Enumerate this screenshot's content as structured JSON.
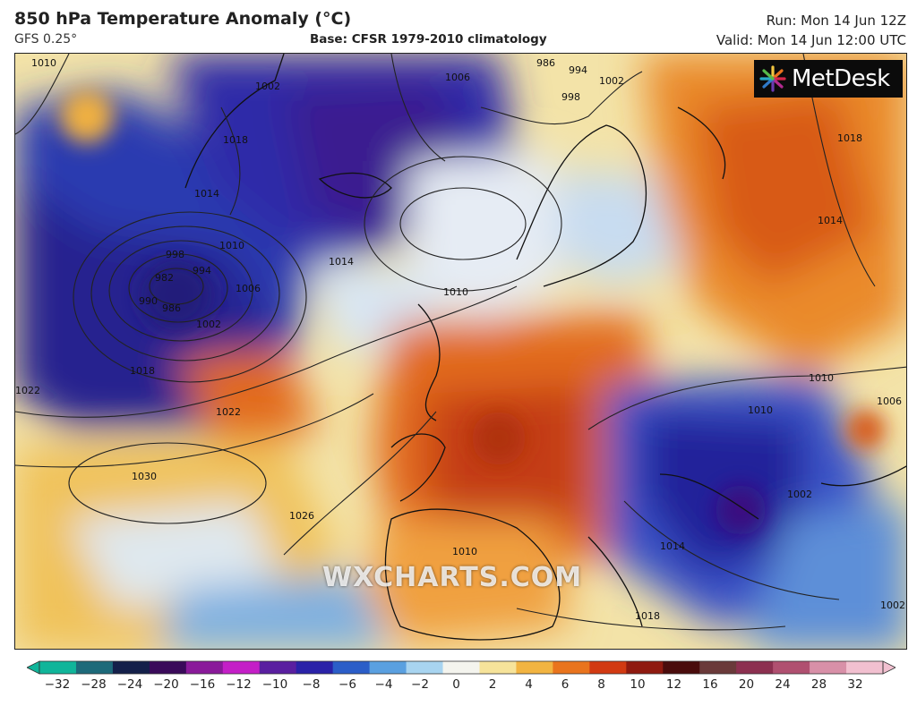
{
  "header": {
    "title": "850 hPa Temperature Anomaly (°C)",
    "model": "GFS 0.25°",
    "base": "Base: CFSR 1979-2010 climatology",
    "run": "Run: Mon 14 Jun 12Z",
    "valid": "Valid: Mon 14 Jun 12:00 UTC"
  },
  "logo": {
    "text": "MetDesk",
    "icon": "metdesk-burst-icon"
  },
  "watermark": "WXCHARTS.COM",
  "colorbar": {
    "ticks": [
      "−32",
      "−28",
      "−24",
      "−20",
      "−16",
      "−12",
      "−10",
      "−8",
      "−6",
      "−4",
      "−2",
      "0",
      "2",
      "4",
      "6",
      "8",
      "10",
      "12",
      "16",
      "20",
      "24",
      "28",
      "32"
    ],
    "colors": [
      "#10b59a",
      "#1d6a7a",
      "#14204a",
      "#3a0a5a",
      "#8a1a9a",
      "#c41fc7",
      "#5a1fa0",
      "#2a22a8",
      "#2b5ec8",
      "#5aa0e0",
      "#a8d4f0",
      "#f4f4ee",
      "#f6e39a",
      "#f2b441",
      "#e9741d",
      "#d23a12",
      "#8f1a10",
      "#4a0c0c",
      "#6a3a3a",
      "#8c3050",
      "#b05070",
      "#d890a8",
      "#f2c0d0"
    ]
  },
  "isobar_labels": [
    "1010",
    "1018",
    "1002",
    "1006",
    "986",
    "994",
    "998",
    "1002",
    "1014",
    "1010",
    "998",
    "982",
    "994",
    "1006",
    "986",
    "990",
    "1002",
    "1018",
    "1022",
    "1022",
    "1014",
    "1010",
    "1030",
    "1026",
    "1010",
    "1014",
    "1018",
    "1010",
    "1010",
    "1006",
    "1002",
    "1018",
    "1014",
    "1002"
  ]
}
